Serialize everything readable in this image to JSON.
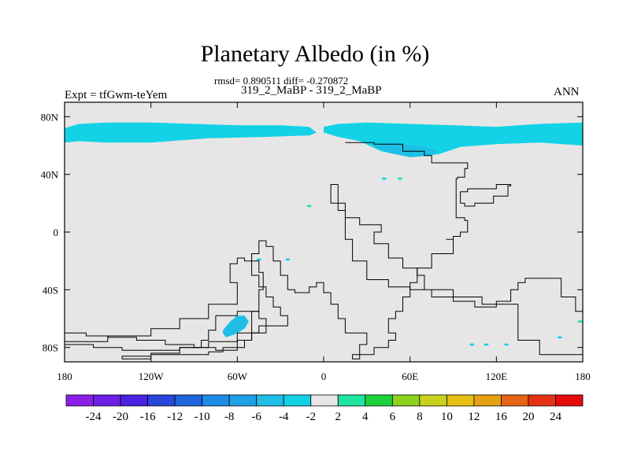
{
  "chart_data": {
    "type": "heatmap",
    "title": "Planetary Albedo (in %)",
    "stats_line": "rmsd= 0.890511 diff= -0.270872",
    "case_line": "319_2_MaBP - 319_2_MaBP",
    "left_label": "Expt = tfGwm-teYem",
    "right_label": "ANN",
    "xlim": [
      -180,
      180
    ],
    "ylim": [
      -90,
      90
    ],
    "x_ticks": [
      {
        "value": -180,
        "label": "180"
      },
      {
        "value": -120,
        "label": "120W"
      },
      {
        "value": -60,
        "label": "60W"
      },
      {
        "value": 0,
        "label": "0"
      },
      {
        "value": 60,
        "label": "60E"
      },
      {
        "value": 120,
        "label": "120E"
      },
      {
        "value": 180,
        "label": "180"
      }
    ],
    "y_ticks": [
      {
        "value": 80,
        "label": "80N"
      },
      {
        "value": 40,
        "label": "40N"
      },
      {
        "value": 0,
        "label": "0"
      },
      {
        "value": -40,
        "label": "40S"
      },
      {
        "value": -80,
        "label": "80S"
      }
    ],
    "colorbar": {
      "levels": [
        "-24",
        "-20",
        "-16",
        "-12",
        "-10",
        "-8",
        "-6",
        "-4",
        "-2",
        "2",
        "4",
        "6",
        "8",
        "10",
        "12",
        "16",
        "20",
        "24"
      ],
      "colors": [
        "#8b1ee6",
        "#6e1ee6",
        "#4b22e0",
        "#2846dc",
        "#1e64dc",
        "#1e8ce6",
        "#1ea0e6",
        "#1ebee6",
        "#14d2e6",
        "#e6e6e6",
        "#1ee6a0",
        "#1ed23c",
        "#8cd21e",
        "#c8d21e",
        "#e6be14",
        "#e6a014",
        "#e66414",
        "#e63214",
        "#e60a0a"
      ]
    },
    "background_color": "#e6e6e6",
    "anomaly_regions": [
      {
        "name": "arctic-west-band",
        "value": -3,
        "lon": [
          -180,
          -170,
          -150,
          -120,
          -90,
          -60,
          -30,
          -10,
          -5,
          -10,
          -40,
          -80,
          -120,
          -150,
          -170,
          -180
        ],
        "lat": [
          72,
          75,
          76,
          76,
          75,
          74,
          74,
          73,
          69,
          67,
          66,
          65,
          62,
          62,
          63,
          62
        ]
      },
      {
        "name": "arctic-east-band",
        "value": -3,
        "lon": [
          0,
          10,
          30,
          60,
          90,
          120,
          150,
          180,
          180,
          150,
          120,
          95,
          80,
          60,
          40,
          25,
          10,
          0
        ],
        "lat": [
          73,
          75,
          76,
          75,
          74,
          73,
          75,
          76,
          60,
          62,
          61,
          59,
          54,
          52,
          56,
          63,
          66,
          69
        ]
      },
      {
        "name": "arctic-east-core",
        "value": -5,
        "lon": [
          35,
          45,
          55,
          70,
          80,
          75,
          60,
          45
        ],
        "lat": [
          59,
          62,
          61,
          59,
          56,
          53,
          52,
          55
        ]
      },
      {
        "name": "antarctic-peninsula-spot",
        "value": -5,
        "lon": [
          -70,
          -65,
          -60,
          -55,
          -52,
          -55,
          -62,
          -68,
          -70
        ],
        "lat": [
          -68,
          -62,
          -58,
          -58,
          -62,
          -67,
          -71,
          -73,
          -70
        ]
      }
    ],
    "small_spots": [
      {
        "lon": 42,
        "lat": 37,
        "value": -3
      },
      {
        "lon": 53,
        "lat": 37,
        "value": 3
      },
      {
        "lon": -10,
        "lat": 18,
        "value": 3
      },
      {
        "lon": -45,
        "lat": -19,
        "value": -3
      },
      {
        "lon": -25,
        "lat": -19,
        "value": -3
      },
      {
        "lon": 103,
        "lat": -78,
        "value": -3
      },
      {
        "lon": 113,
        "lat": -78,
        "value": -3
      },
      {
        "lon": 127,
        "lat": -78,
        "value": -3
      },
      {
        "lon": 164,
        "lat": -73,
        "value": -3
      },
      {
        "lon": 178,
        "lat": -62,
        "value": 3
      }
    ],
    "coastlines": [
      {
        "name": "coastline-north-continent",
        "lon": [
          15,
          35,
          55,
          70,
          75,
          90,
          100,
          98,
          93,
          92,
          98,
          100,
          95,
          90,
          85,
          90,
          75,
          65,
          60,
          55,
          50,
          45,
          50,
          45,
          35,
          25,
          20,
          25,
          30,
          15,
          10,
          5,
          0,
          -5,
          -10,
          -20,
          -25,
          -30,
          -35,
          -40,
          -45,
          -50,
          -45,
          -42,
          -45,
          -50,
          -50,
          -55,
          -60,
          -75,
          -90,
          -110,
          -130,
          -150,
          -165,
          -180
        ],
        "lat": [
          62,
          61,
          56,
          53,
          48,
          48,
          44,
          38,
          37,
          10,
          8,
          0,
          -3,
          -5,
          -5,
          -15,
          -25,
          -35,
          -45,
          -55,
          -60,
          -70,
          -75,
          -80,
          -85,
          -88,
          -85,
          -78,
          -70,
          -60,
          -50,
          -42,
          -35,
          -38,
          -42,
          -40,
          -30,
          -20,
          -10,
          -6,
          -15,
          -20,
          -28,
          -40,
          -55,
          -65,
          -75,
          -80,
          -82,
          -80,
          -78,
          -75,
          -73,
          -72,
          -70,
          -68
        ]
      },
      {
        "name": "coastline-south-continent",
        "lon": [
          -180,
          -160,
          -140,
          -120,
          -100,
          -80,
          -60,
          -40,
          -25,
          -30,
          -35,
          -40,
          -45,
          -50,
          -55,
          -60,
          -65,
          -60,
          -80,
          -100,
          -120,
          -150,
          -180
        ],
        "lat": [
          -78,
          -80,
          -82,
          -82,
          -80,
          -76,
          -70,
          -65,
          -58,
          -52,
          -45,
          -38,
          -30,
          -20,
          -18,
          -22,
          -35,
          -50,
          -60,
          -67,
          -72,
          -76,
          -78
        ]
      },
      {
        "name": "coastline-south-inner",
        "lon": [
          -75,
          -60,
          -50,
          -45,
          -40,
          -45,
          -50,
          -60,
          -70,
          -80,
          -100,
          -120,
          -140,
          -120,
          -100,
          -85,
          -80,
          -75
        ],
        "lat": [
          -58,
          -55,
          -55,
          -60,
          -65,
          -70,
          -75,
          -80,
          -83,
          -85,
          -85,
          -86,
          -88,
          -84,
          -80,
          -75,
          -68,
          -58
        ]
      },
      {
        "name": "coastline-east-continent",
        "lon": [
          10,
          5,
          5,
          15,
          25,
          40,
          35,
          45,
          55,
          65,
          70,
          90,
          100,
          105,
          120,
          130,
          135,
          140,
          150,
          165,
          175,
          180,
          180,
          170,
          150,
          135,
          110,
          95,
          75,
          60,
          45,
          30,
          20,
          15,
          10
        ],
        "lat": [
          33,
          28,
          20,
          10,
          5,
          0,
          -8,
          -18,
          -25,
          -30,
          -40,
          -48,
          -48,
          -52,
          -48,
          -40,
          -35,
          -32,
          -32,
          -45,
          -55,
          -62,
          -85,
          -85,
          -75,
          -50,
          -45,
          -45,
          -40,
          -38,
          -33,
          -20,
          -5,
          15,
          33
        ]
      },
      {
        "name": "coastline-india-block",
        "lon": [
          95,
          100,
          110,
          120,
          130,
          128,
          118,
          105,
          98,
          95
        ],
        "lat": [
          28,
          30,
          30,
          33,
          32,
          25,
          20,
          18,
          20,
          28
        ]
      }
    ]
  }
}
